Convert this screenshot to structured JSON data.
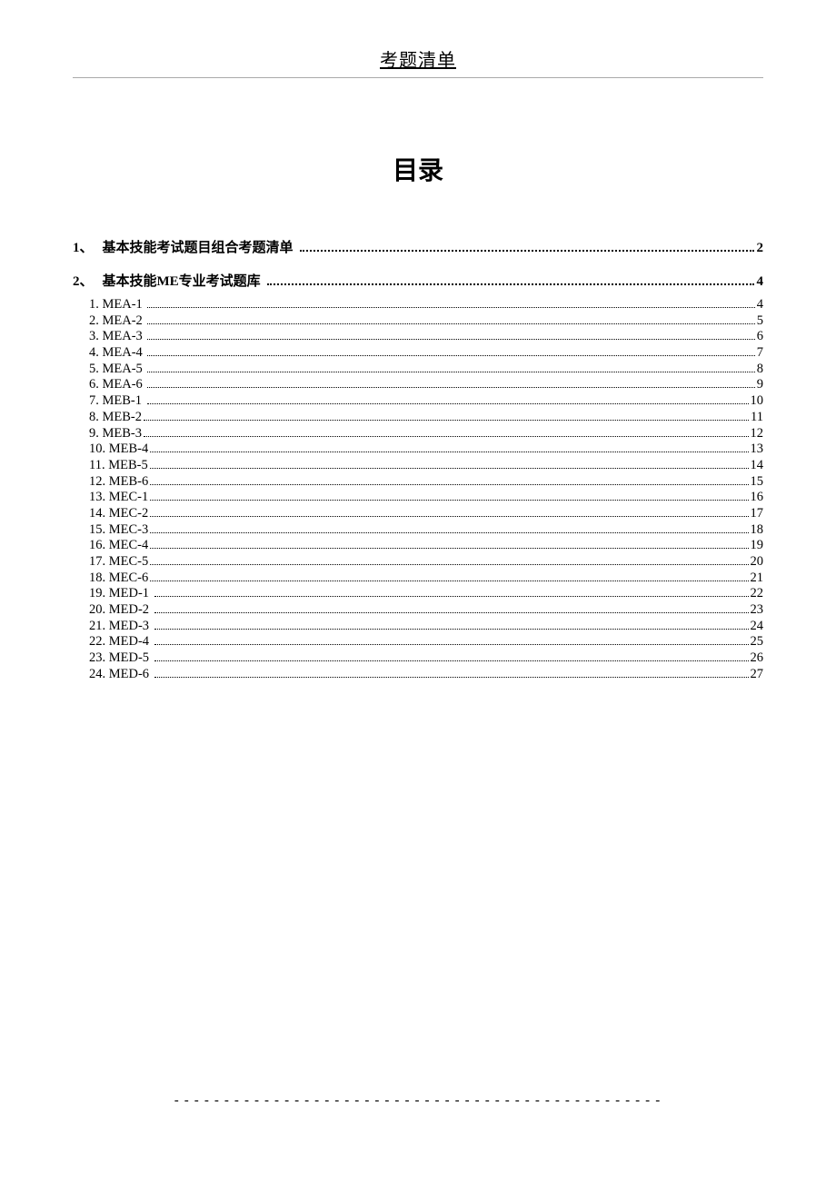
{
  "header": "考题清单",
  "title": "目录",
  "toc_main": [
    {
      "num": "1、",
      "label": "基本技能考试题目组合考题清单",
      "page": "2"
    },
    {
      "num": "2、",
      "label": "基本技能ME专业考试题库",
      "page": "4"
    }
  ],
  "toc_sub": [
    {
      "label": "1. MEA-1 ",
      "page": "4"
    },
    {
      "label": "2. MEA-2 ",
      "page": "5"
    },
    {
      "label": "3. MEA-3 ",
      "page": "6"
    },
    {
      "label": "4. MEA-4 ",
      "page": "7"
    },
    {
      "label": "5. MEA-5 ",
      "page": "8"
    },
    {
      "label": "6. MEA-6 ",
      "page": "9"
    },
    {
      "label": "7. MEB-1 ",
      "page": "10"
    },
    {
      "label": "8. MEB-2",
      "page": "11"
    },
    {
      "label": "9. MEB-3",
      "page": "12"
    },
    {
      "label": "10. MEB-4",
      "page": "13"
    },
    {
      "label": "11. MEB-5",
      "page": "14"
    },
    {
      "label": "12. MEB-6",
      "page": "15"
    },
    {
      "label": "13. MEC-1",
      "page": "16"
    },
    {
      "label": "14. MEC-2",
      "page": "17"
    },
    {
      "label": "15. MEC-3",
      "page": "18"
    },
    {
      "label": "16. MEC-4",
      "page": "19"
    },
    {
      "label": "17. MEC-5",
      "page": "20"
    },
    {
      "label": "18. MEC-6",
      "page": "21"
    },
    {
      "label": "19. MED-1 ",
      "page": "22"
    },
    {
      "label": "20. MED-2 ",
      "page": "23"
    },
    {
      "label": "21. MED-3 ",
      "page": "24"
    },
    {
      "label": "22. MED-4 ",
      "page": "25"
    },
    {
      "label": "23. MED-5 ",
      "page": "26"
    },
    {
      "label": "24. MED-6 ",
      "page": "27"
    }
  ],
  "footer": "-------------------------------------------------"
}
